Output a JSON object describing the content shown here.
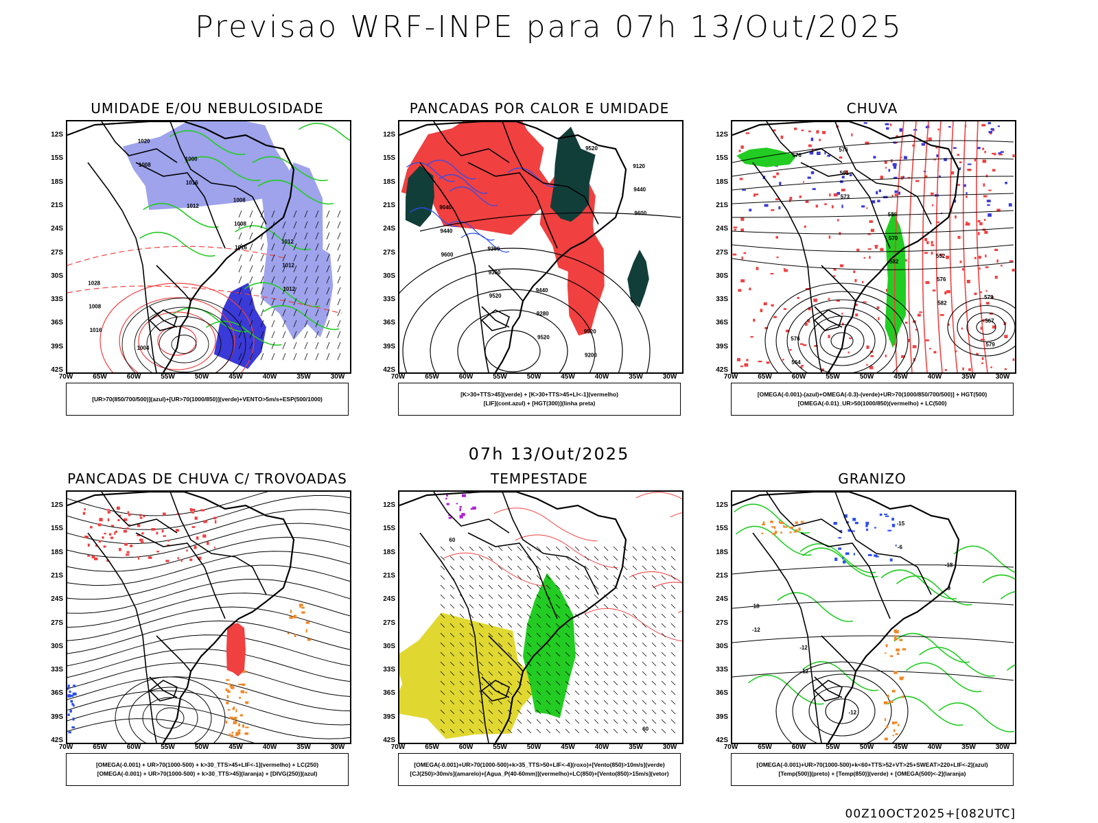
{
  "main_title": "Previsao WRF-INPE  para 07h 13/Out/2025",
  "mid_title": "07h 13/Out/2025",
  "footer_stamp": "00Z10OCT2025+[082UTC]",
  "lat_ticks": [
    "12S",
    "15S",
    "18S",
    "21S",
    "24S",
    "27S",
    "30S",
    "33S",
    "36S",
    "39S",
    "42S"
  ],
  "lon_ticks": [
    "70W",
    "65W",
    "60W",
    "55W",
    "50W",
    "45W",
    "40W",
    "35W",
    "30W"
  ],
  "panels": [
    {
      "title": "UMIDADE E/OU NEBULOSIDADE",
      "legend": [
        "[UR>70(850/700/500)](azul)+[UR>70(1000/850)](verde)+VENTO>5m/s+ESP(500/1000)"
      ],
      "contour_labels": [
        "1008",
        "1012",
        "1016",
        "1012",
        "1016",
        "1020",
        "1016",
        "1008",
        "1012",
        "1008",
        "1004",
        "1000",
        "1008",
        "1012",
        "1028"
      ]
    },
    {
      "title": "PANCADAS POR CALOR E UMIDADE",
      "legend": [
        "[K>30+TTS>45](verde) + [K>30+TTS>45+LI<-1](vermelho)",
        "[LIF](cont.azul) + [HGT(300)](linha preta)"
      ],
      "contour_labels": [
        "9600",
        "9600",
        "9520",
        "9520",
        "9520",
        "9440",
        "9440",
        "9360",
        "9280",
        "9200",
        "9120",
        "9040",
        "9360",
        "9440",
        "9520"
      ]
    },
    {
      "title": "CHUVA",
      "legend": [
        "[OMEGA(-0.001)-(azul)+OMEGA(-0.3)-(verde)+UR>70(1000/850/700/500)] + HGT(500)",
        "[OMEGA(-0.01)_UR>50(1000/850)(vermelho) + LC(500)"
      ],
      "contour_labels": [
        "582",
        "582",
        "579",
        "576",
        "573",
        "570",
        "576",
        "567",
        "564",
        "561",
        "555",
        "552",
        "579",
        "576",
        "576"
      ]
    },
    {
      "title": "PANCADAS DE CHUVA C/ TROVOADAS",
      "legend": [
        "[OMEGA(-0.001) + UR>70(1000-500) + k>30_TTS>45+LIF<-1](vermelho) + LC(250)",
        "[OMEGA(-0.001) + UR>70(1000-500) + k>30_TTS>45](laranja) + [DIVG(250)](azul)"
      ],
      "contour_labels": []
    },
    {
      "title": "TEMPESTADE",
      "legend": [
        "[OMEGA(-0.001)+UR>70(1000-500)+k>35_TTS>50+LIF<-4](roxo)+[Vento(850)>10m/s](verde)",
        "[CJ(250)>30m/s](amarelo)+[Agua_P(40-60mm)](vermelho)+LC(850)+[Vento(850)>15m/s](vetor)"
      ],
      "contour_labels": [
        "60",
        "60"
      ]
    },
    {
      "title": "GRANIZO",
      "legend": [
        "[OMEGA(-0.001)+UR>70(1000-500)+k<60+TTS>52+VT>25+SWEAT>220+LIF<-2](azul)",
        "[Temp(500)](preto) + [Temp(850)](verde) + [OMEGA(500)<-2](laranja)"
      ],
      "contour_labels": [
        "-6",
        "-9",
        "-12",
        "-12",
        "-12",
        "-15",
        "-18",
        "-18",
        "-12"
      ]
    }
  ],
  "colors": {
    "blue_humidity": "#9ea3ec",
    "blue_dark": "#3a3ad8",
    "green": "#22cc22",
    "red": "#f04040",
    "dark_teal": "#123e3a",
    "yellow": "#e0d830",
    "orange": "#f08828",
    "purple": "#b020d0",
    "blue_line": "#2a4ef0"
  }
}
